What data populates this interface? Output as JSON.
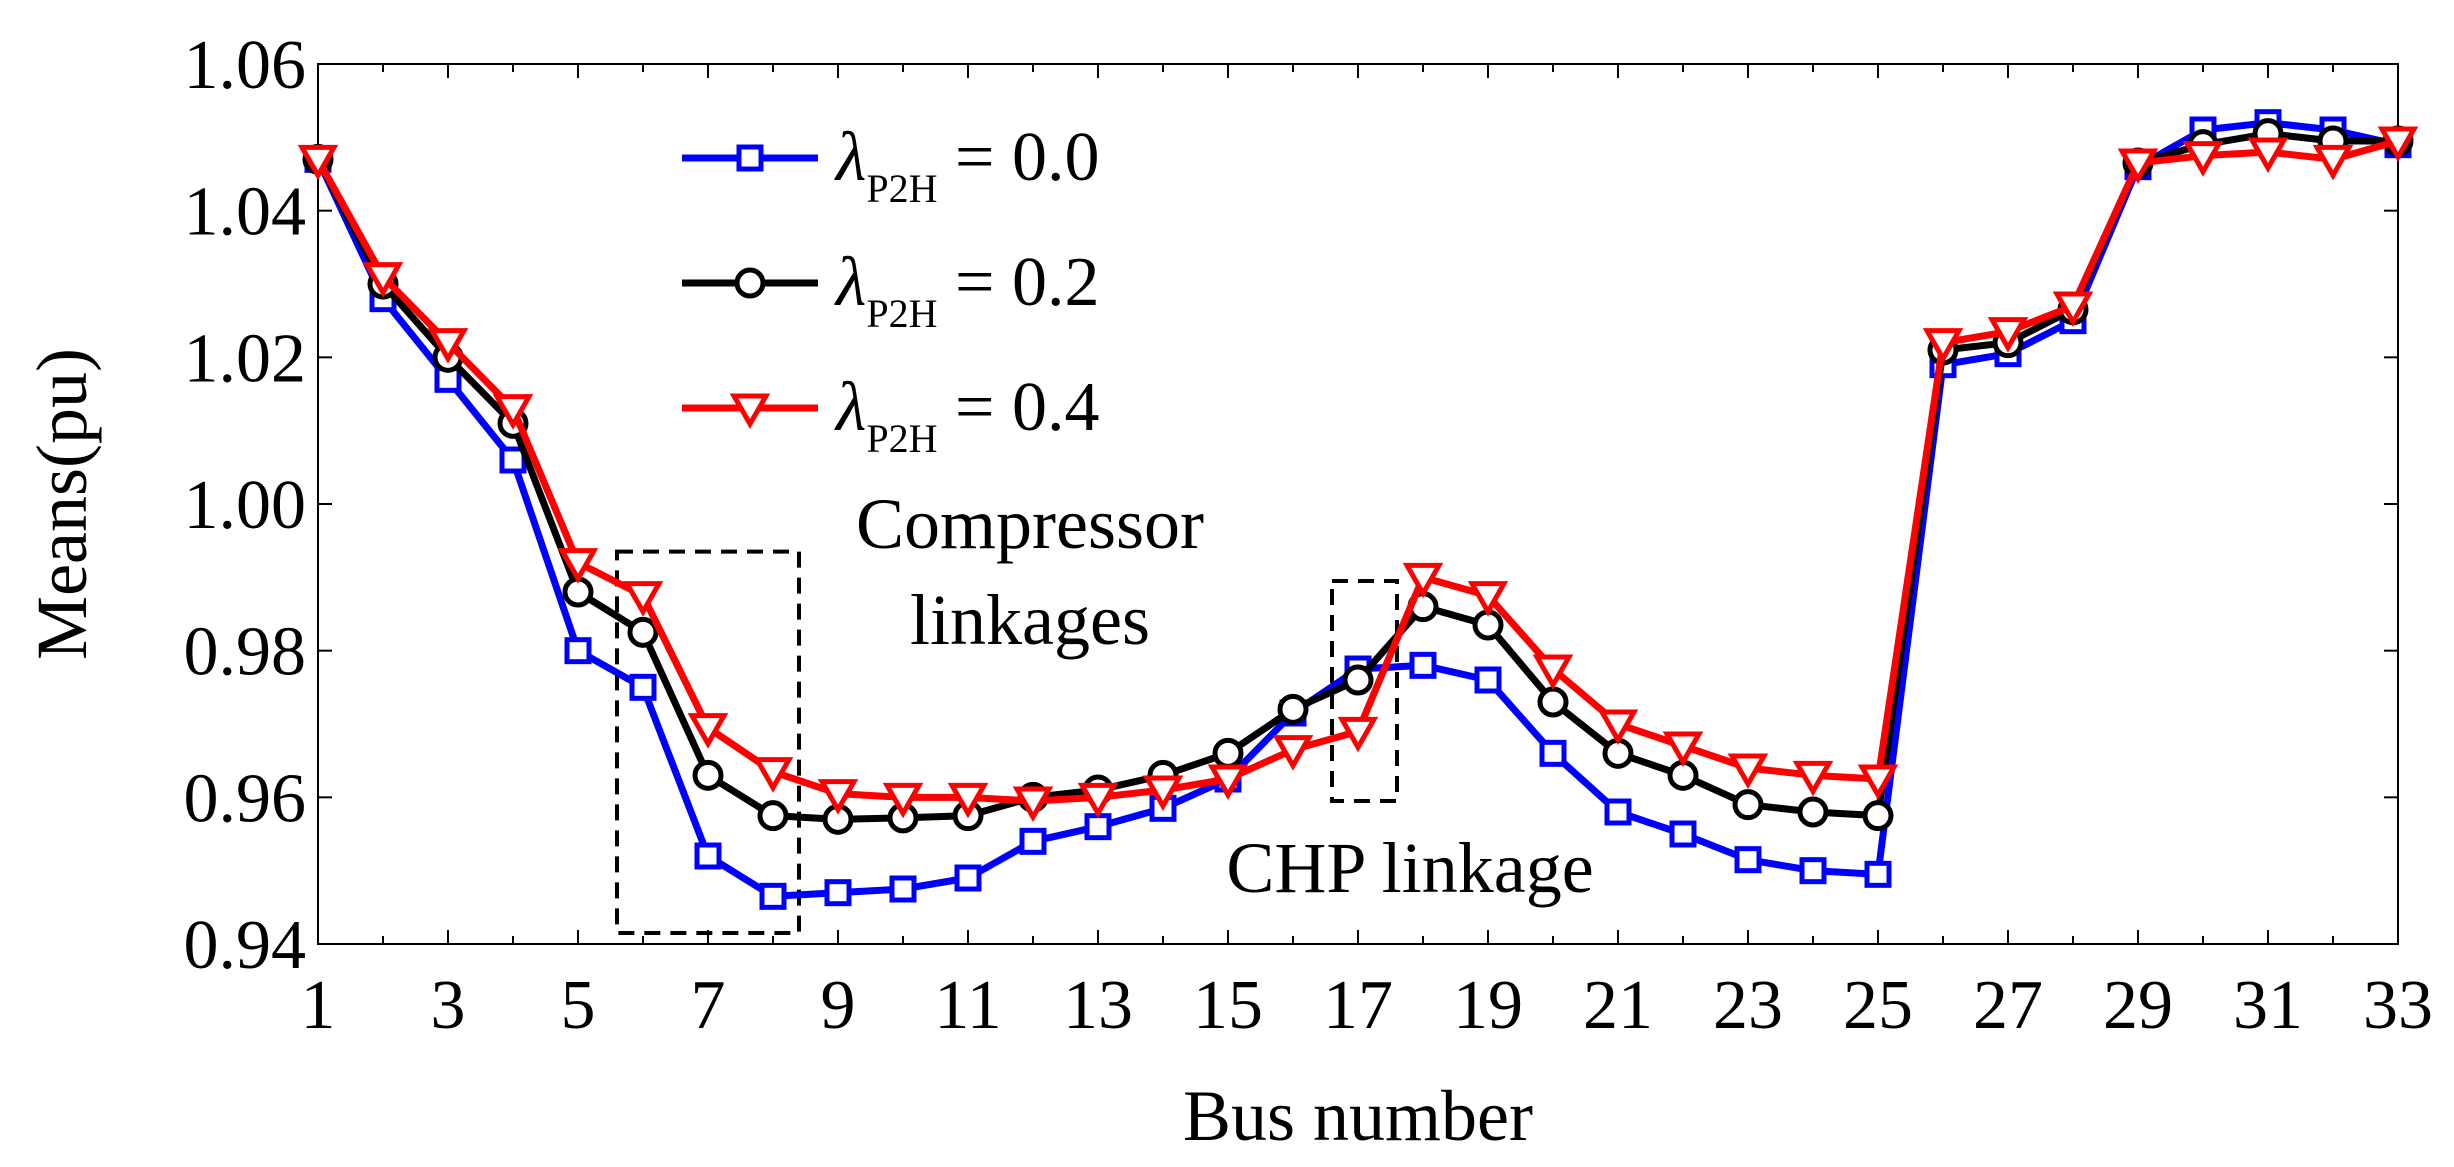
{
  "chart_data": {
    "type": "line",
    "xlabel": "Bus number",
    "ylabel": "Means(pu)",
    "xlim": [
      1,
      33
    ],
    "ylim": [
      0.94,
      1.06
    ],
    "xticks": [
      1,
      3,
      5,
      7,
      9,
      11,
      13,
      15,
      17,
      19,
      21,
      23,
      25,
      27,
      29,
      31,
      33
    ],
    "yticks": [
      0.94,
      0.96,
      0.98,
      1.0,
      1.02,
      1.04,
      1.06
    ],
    "ytick_labels": [
      "0.94",
      "0.96",
      "0.98",
      "1.00",
      "1.02",
      "1.04",
      "1.06"
    ],
    "x": [
      1,
      2,
      3,
      4,
      5,
      6,
      7,
      8,
      9,
      10,
      11,
      12,
      13,
      14,
      15,
      16,
      17,
      18,
      19,
      20,
      21,
      22,
      23,
      24,
      25,
      26,
      27,
      28,
      29,
      30,
      31,
      32,
      33
    ],
    "series": [
      {
        "name": "λP2H = 0.0",
        "symbol": "λ",
        "subscript": "P2H",
        "value_text": " = 0.0",
        "color": "#0000ff",
        "marker": "square",
        "values": [
          1.047,
          1.028,
          1.017,
          1.006,
          0.98,
          0.975,
          0.952,
          0.9465,
          0.947,
          0.9475,
          0.949,
          0.954,
          0.956,
          0.9585,
          0.9625,
          0.9715,
          0.9775,
          0.978,
          0.976,
          0.966,
          0.958,
          0.955,
          0.9515,
          0.95,
          0.9495,
          1.019,
          1.0205,
          1.025,
          1.046,
          1.051,
          1.052,
          1.051,
          1.049
        ]
      },
      {
        "name": "λP2H = 0.2",
        "symbol": "λ",
        "subscript": "P2H",
        "value_text": " = 0.2",
        "color": "#000000",
        "marker": "circle",
        "values": [
          1.047,
          1.03,
          1.02,
          1.011,
          0.988,
          0.9825,
          0.963,
          0.9575,
          0.957,
          0.9572,
          0.9575,
          0.96,
          0.961,
          0.963,
          0.966,
          0.972,
          0.976,
          0.986,
          0.9835,
          0.973,
          0.966,
          0.963,
          0.959,
          0.958,
          0.9575,
          1.021,
          1.022,
          1.0265,
          1.0465,
          1.049,
          1.0505,
          1.0495,
          1.0495
        ]
      },
      {
        "name": "λP2H = 0.4",
        "symbol": "λ",
        "subscript": "P2H",
        "value_text": " = 0.4",
        "color": "#ff0000",
        "marker": "triangle-down",
        "values": [
          1.047,
          1.031,
          1.022,
          1.013,
          0.992,
          0.9875,
          0.9695,
          0.9635,
          0.9605,
          0.96,
          0.96,
          0.9595,
          0.96,
          0.961,
          0.9625,
          0.9665,
          0.969,
          0.99,
          0.9875,
          0.9775,
          0.97,
          0.967,
          0.964,
          0.963,
          0.9625,
          1.022,
          1.0235,
          1.027,
          1.0465,
          1.0475,
          1.048,
          1.047,
          1.0495
        ]
      }
    ],
    "annotations": [
      {
        "lines": [
          "Compressor",
          "linkages"
        ],
        "box_x": [
          5.6,
          8.4
        ],
        "box_y": [
          0.9415,
          0.9935
        ]
      },
      {
        "lines": [
          "CHP linkage"
        ],
        "box_x": [
          16.6,
          17.6
        ],
        "box_y": [
          0.9595,
          0.9895
        ]
      }
    ]
  }
}
